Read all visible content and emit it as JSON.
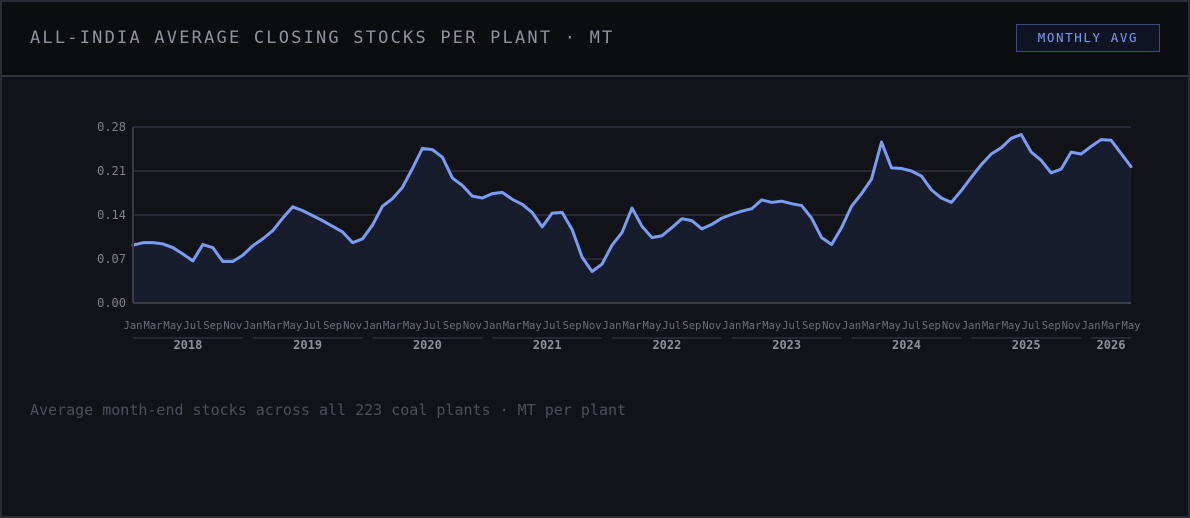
{
  "header": {
    "title": "ALL-INDIA AVERAGE CLOSING STOCKS PER PLANT · MT",
    "badge": "MONTHLY AVG"
  },
  "caption": "Average month-end stocks across all 223 coal plants · MT per plant",
  "colors": {
    "line": "#7b9cf3",
    "area": "#181d2e",
    "grid": "#272a35",
    "axis": "#3a3d48"
  },
  "chart_data": {
    "type": "area",
    "title": "",
    "xlabel": "",
    "ylabel": "",
    "ylim": [
      0,
      0.28
    ],
    "yticks": [
      "0.00",
      "0.07",
      "0.14",
      "0.21",
      "0.28"
    ],
    "grid": true,
    "start": "2018-01",
    "month_labels": [
      "Jan",
      "Mar",
      "May",
      "Jul",
      "Sep",
      "Nov"
    ],
    "years": [
      "2018",
      "2019",
      "2020",
      "2021",
      "2022",
      "2023",
      "2024",
      "2025",
      "2026"
    ],
    "series": [
      {
        "values": [
          0.092,
          0.096,
          0.096,
          0.094,
          0.088,
          0.078,
          0.067,
          0.093,
          0.088,
          0.066,
          0.066,
          0.076,
          0.091,
          0.102,
          0.115,
          0.135,
          0.153,
          0.147,
          0.139,
          0.131,
          0.122,
          0.113,
          0.096,
          0.102,
          0.124,
          0.154,
          0.166,
          0.184,
          0.214,
          0.246,
          0.244,
          0.232,
          0.199,
          0.187,
          0.17,
          0.167,
          0.174,
          0.176,
          0.165,
          0.157,
          0.144,
          0.121,
          0.143,
          0.144,
          0.117,
          0.073,
          0.05,
          0.062,
          0.092,
          0.112,
          0.151,
          0.122,
          0.104,
          0.107,
          0.12,
          0.134,
          0.131,
          0.118,
          0.125,
          0.135,
          0.141,
          0.146,
          0.15,
          0.164,
          0.16,
          0.162,
          0.158,
          0.155,
          0.135,
          0.104,
          0.093,
          0.12,
          0.154,
          0.174,
          0.197,
          0.256,
          0.215,
          0.214,
          0.21,
          0.202,
          0.18,
          0.167,
          0.16,
          0.179,
          0.2,
          0.22,
          0.237,
          0.247,
          0.262,
          0.268,
          0.24,
          0.227,
          0.207,
          0.213,
          0.24,
          0.237,
          0.249,
          0.26,
          0.259,
          0.238,
          0.217
        ]
      }
    ]
  }
}
